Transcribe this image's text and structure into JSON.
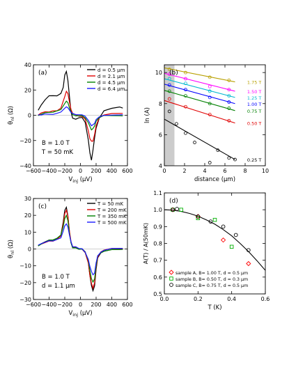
{
  "chart_data": [
    {
      "panel": "(a)",
      "type": "line",
      "ylabel": "θnl (Ω)",
      "ylabel_main": "θ",
      "ylabel_sub": "nl",
      "ylabel_unit": "(Ω)",
      "xlabel": "Vinj (μV)",
      "xlabel_main": "V",
      "xlabel_sub": "inj",
      "xlabel_unit": "(μV)",
      "xlim": [
        -600,
        600
      ],
      "ylim": [
        -40,
        40
      ],
      "xticks": [
        -600,
        -400,
        -200,
        0,
        200,
        400,
        600
      ],
      "yticks": [
        -40,
        -20,
        0,
        20,
        40
      ],
      "legend_position": "top-right",
      "annotations": [
        "B = 1.0 T",
        "T = 50 mK"
      ],
      "series": [
        {
          "name": "d = 0.5 μm",
          "color": "#000000",
          "x": [
            -540,
            -500,
            -450,
            -400,
            -350,
            -300,
            -250,
            -220,
            -200,
            -180,
            -160,
            -140,
            -120,
            -100,
            -60,
            -20,
            20,
            60,
            100,
            120,
            140,
            160,
            180,
            200,
            240,
            300,
            400,
            500,
            540
          ],
          "y": [
            4,
            8,
            12,
            15,
            15,
            15,
            17,
            22,
            32,
            35,
            28,
            15,
            3,
            -2,
            -3,
            -2,
            -2,
            -6,
            -20,
            -30,
            -36,
            -28,
            -18,
            -10,
            -2,
            4,
            6,
            7,
            6
          ]
        },
        {
          "name": "d = 2.1 μm",
          "color": "#e00000",
          "x": [
            -540,
            -500,
            -450,
            -400,
            -350,
            -300,
            -250,
            -200,
            -180,
            -160,
            -140,
            -120,
            -100,
            -60,
            -20,
            20,
            60,
            100,
            120,
            140,
            160,
            180,
            200,
            240,
            300,
            400,
            500,
            540
          ],
          "y": [
            0,
            2,
            3,
            3,
            4,
            4,
            6,
            15,
            19,
            17,
            10,
            4,
            1,
            0,
            -1,
            -1,
            -3,
            -12,
            -18,
            -20,
            -20,
            -15,
            -8,
            -2,
            0,
            1,
            1,
            1
          ]
        },
        {
          "name": "d = 4.5 μm",
          "color": "#008000",
          "x": [
            -540,
            -500,
            -450,
            -400,
            -350,
            -300,
            -250,
            -200,
            -180,
            -160,
            -140,
            -120,
            -100,
            -60,
            -20,
            20,
            60,
            100,
            120,
            140,
            160,
            180,
            200,
            240,
            300,
            400,
            500,
            540
          ],
          "y": [
            0,
            1,
            2,
            2,
            2,
            3,
            4,
            9,
            11,
            10,
            6,
            3,
            1,
            0,
            0,
            0,
            -2,
            -6,
            -9,
            -12,
            -11,
            -9,
            -5,
            -2,
            0,
            0,
            0,
            0
          ]
        },
        {
          "name": "d = 6.4 μm",
          "color": "#1a1aff",
          "x": [
            -540,
            -500,
            -450,
            -400,
            -350,
            -300,
            -250,
            -200,
            -180,
            -160,
            -140,
            -120,
            -100,
            -60,
            -20,
            20,
            60,
            100,
            120,
            140,
            160,
            180,
            200,
            240,
            300,
            400,
            500,
            540
          ],
          "y": [
            0,
            0,
            1,
            1,
            1,
            2,
            3,
            6,
            7,
            6,
            4,
            2,
            1,
            0,
            0,
            0,
            -1,
            -4,
            -6,
            -8,
            -7,
            -6,
            -3,
            -1,
            0,
            0,
            0,
            0
          ]
        }
      ]
    },
    {
      "panel": "(b)",
      "type": "scatter",
      "ylabel": "ln (A)",
      "xlabel": "distance (μm)",
      "xlim": [
        0,
        10
      ],
      "ylim": [
        4,
        10.5
      ],
      "xticks": [
        0,
        2,
        4,
        6,
        8,
        10
      ],
      "yticks": [
        4,
        6,
        8,
        10
      ],
      "shaded_region_x": [
        0,
        1
      ],
      "series": [
        {
          "name": "1.75 T",
          "color": "#b8a000",
          "x": [
            0.5,
            2.1,
            4.5,
            6.4
          ],
          "y": [
            10.2,
            10.0,
            9.7,
            9.5
          ],
          "fit": [
            [
              0,
              10.3
            ],
            [
              7,
              9.4
            ]
          ]
        },
        {
          "name": "1.50 T",
          "color": "#ff00ff",
          "x": [
            0.5,
            2.1,
            4.5,
            6.4
          ],
          "y": [
            9.9,
            9.6,
            9.1,
            8.9
          ],
          "fit": [
            [
              0,
              9.95
            ],
            [
              7,
              8.8
            ]
          ]
        },
        {
          "name": "1.25 T",
          "color": "#00b8d0",
          "x": [
            0.5,
            2.1,
            4.5,
            6.4
          ],
          "y": [
            9.6,
            9.3,
            8.8,
            8.5
          ],
          "fit": [
            [
              0,
              9.6
            ],
            [
              7,
              8.4
            ]
          ]
        },
        {
          "name": "1.00 T",
          "color": "#0000ff",
          "x": [
            0.5,
            2.1,
            4.5,
            6.4
          ],
          "y": [
            9.2,
            8.9,
            8.4,
            8.1
          ],
          "fit": [
            [
              0,
              9.25
            ],
            [
              7,
              8.0
            ]
          ]
        },
        {
          "name": "0.75 T",
          "color": "#008000",
          "x": [
            0.5,
            2.1,
            4.5,
            6.4
          ],
          "y": [
            8.8,
            8.5,
            8.0,
            7.7
          ],
          "fit": [
            [
              0,
              8.85
            ],
            [
              7,
              7.55
            ]
          ]
        },
        {
          "name": "0.50 T",
          "color": "#e00000",
          "x": [
            0.5,
            2.1,
            4.5,
            6.4
          ],
          "y": [
            8.3,
            7.8,
            7.3,
            6.9
          ],
          "fit": [
            [
              0,
              8.2
            ],
            [
              7,
              6.75
            ]
          ]
        },
        {
          "name": "0.25 T",
          "color": "#000000",
          "x": [
            0.5,
            1.2,
            2.1,
            3.0,
            4.5,
            5.3,
            6.4,
            7.0
          ],
          "y": [
            7.5,
            6.7,
            6.1,
            5.5,
            4.2,
            5.0,
            4.5,
            4.4
          ],
          "fit": [
            [
              0,
              7.0
            ],
            [
              7,
              4.4
            ]
          ]
        }
      ]
    },
    {
      "panel": "(c)",
      "type": "line",
      "ylabel": "θnl (Ω)",
      "ylabel_main": "θ",
      "ylabel_sub": "nl",
      "ylabel_unit": "(Ω)",
      "xlabel": "Vinj (μV)",
      "xlabel_main": "V",
      "xlabel_sub": "inj",
      "xlabel_unit": "(μV)",
      "xlim": [
        -600,
        600
      ],
      "ylim": [
        -30,
        30
      ],
      "xticks": [
        -600,
        -400,
        -200,
        0,
        200,
        400,
        600
      ],
      "yticks": [
        -30,
        -20,
        -10,
        0,
        10,
        20,
        30
      ],
      "legend_position": "top-right",
      "annotations": [
        "B = 1.0 T",
        "d = 1.1 μm"
      ],
      "series": [
        {
          "name": "T =   50 mK",
          "color": "#000000",
          "x": [
            -540,
            -500,
            -450,
            -400,
            -350,
            -300,
            -250,
            -220,
            -200,
            -180,
            -160,
            -140,
            -120,
            -100,
            -60,
            -20,
            20,
            60,
            100,
            120,
            140,
            160,
            180,
            200,
            220,
            260,
            300,
            400,
            500,
            540
          ],
          "y": [
            2,
            3,
            4,
            5,
            5,
            6,
            8,
            16,
            23,
            25,
            20,
            10,
            4,
            1,
            1,
            0,
            0,
            -2,
            -8,
            -16,
            -22,
            -25,
            -22,
            -12,
            -5,
            -2,
            -1,
            0,
            0,
            0
          ]
        },
        {
          "name": "T = 200 mK",
          "color": "#e00000",
          "x": [
            -540,
            -500,
            -450,
            -400,
            -350,
            -300,
            -250,
            -220,
            -200,
            -180,
            -160,
            -140,
            -120,
            -100,
            -60,
            -20,
            20,
            60,
            100,
            120,
            140,
            160,
            180,
            200,
            220,
            260,
            300,
            400,
            500,
            540
          ],
          "y": [
            2,
            3,
            4,
            5,
            5,
            6,
            8,
            15,
            21,
            23,
            19,
            10,
            4,
            1,
            1,
            0,
            0,
            -2,
            -8,
            -15,
            -20,
            -23,
            -20,
            -11,
            -5,
            -2,
            -1,
            0,
            0,
            0
          ]
        },
        {
          "name": "T = 350 mK",
          "color": "#008000",
          "x": [
            -540,
            -500,
            -450,
            -400,
            -350,
            -300,
            -250,
            -220,
            -200,
            -180,
            -160,
            -140,
            -120,
            -100,
            -60,
            -20,
            20,
            60,
            100,
            120,
            140,
            160,
            180,
            200,
            220,
            260,
            300,
            400,
            500,
            540
          ],
          "y": [
            2,
            3,
            4,
            5,
            5,
            6,
            8,
            13,
            18,
            20,
            17,
            9,
            4,
            1,
            1,
            0,
            0,
            -2,
            -7,
            -13,
            -18,
            -20,
            -18,
            -10,
            -4,
            -2,
            -1,
            0,
            0,
            0
          ]
        },
        {
          "name": "T = 500 mK",
          "color": "#1a1aff",
          "x": [
            -540,
            -500,
            -450,
            -400,
            -350,
            -300,
            -250,
            -220,
            -200,
            -180,
            -160,
            -140,
            -120,
            -100,
            -60,
            -20,
            20,
            60,
            100,
            120,
            140,
            160,
            180,
            200,
            220,
            260,
            300,
            400,
            500,
            540
          ],
          "y": [
            2,
            3,
            4,
            5,
            5,
            6,
            7,
            11,
            14,
            15,
            13,
            8,
            4,
            1,
            1,
            0,
            0,
            -2,
            -6,
            -10,
            -13,
            -15,
            -14,
            -8,
            -4,
            -2,
            -1,
            0,
            0,
            0
          ]
        }
      ]
    },
    {
      "panel": "(d)",
      "type": "scatter",
      "ylabel": "A(T) / A(50mK)",
      "xlabel": "T (K)",
      "xlim": [
        0,
        0.6
      ],
      "ylim": [
        0.5,
        1.1
      ],
      "xticks": [
        0.0,
        0.2,
        0.4,
        0.6
      ],
      "yticks": [
        0.5,
        0.6,
        0.7,
        0.8,
        0.9,
        1.0,
        1.1
      ],
      "legend_position": "bottom-left",
      "fit_curve": {
        "x": [
          0,
          0.05,
          0.1,
          0.15,
          0.2,
          0.25,
          0.3,
          0.35,
          0.4,
          0.45,
          0.5,
          0.55,
          0.6
        ],
        "y": [
          1.0,
          0.998,
          0.99,
          0.978,
          0.962,
          0.94,
          0.914,
          0.882,
          0.845,
          0.8,
          0.752,
          0.698,
          0.64
        ]
      },
      "series": [
        {
          "name": "sample A, B= 1.00 T, d = 0.5 μm",
          "color": "#ff0000",
          "marker": "diamond",
          "x": [
            0.05,
            0.2,
            0.35,
            0.5
          ],
          "y": [
            1.0,
            0.96,
            0.82,
            0.68
          ]
        },
        {
          "name": "sample B, B= 0.50 T, d = 0.3 μm",
          "color": "#00b000",
          "marker": "square",
          "x": [
            0.05,
            0.1,
            0.2,
            0.3,
            0.4
          ],
          "y": [
            1.0,
            1.0,
            0.95,
            0.94,
            0.78
          ]
        },
        {
          "name": "sample C, B= 0.75 T, d = 0.5 μm",
          "color": "#000000",
          "marker": "circle",
          "x": [
            0.05,
            0.075,
            0.2,
            0.275,
            0.35,
            0.425,
            0.5
          ],
          "y": [
            1.0,
            1.005,
            0.96,
            0.93,
            0.9,
            0.85,
            0.76
          ]
        }
      ]
    }
  ]
}
